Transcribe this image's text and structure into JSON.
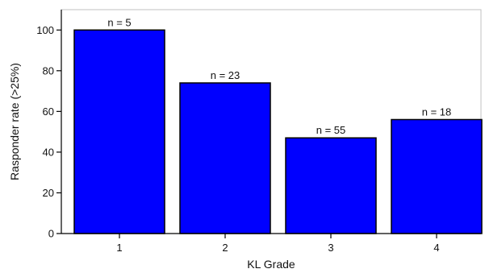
{
  "chart_data": {
    "type": "bar",
    "categories": [
      "1",
      "2",
      "3",
      "4"
    ],
    "values": [
      100,
      74,
      47,
      56
    ],
    "bar_labels": [
      "n = 5",
      "n = 23",
      "n = 55",
      "n = 18"
    ],
    "xlabel": "KL Grade",
    "ylabel": "Rasponder rate (>25%)",
    "ylim": [
      0,
      110
    ],
    "yticks": [
      0,
      20,
      40,
      60,
      80,
      100
    ],
    "grid": false,
    "bar_color": "#0000ff",
    "bar_edge_color": "#000000"
  }
}
